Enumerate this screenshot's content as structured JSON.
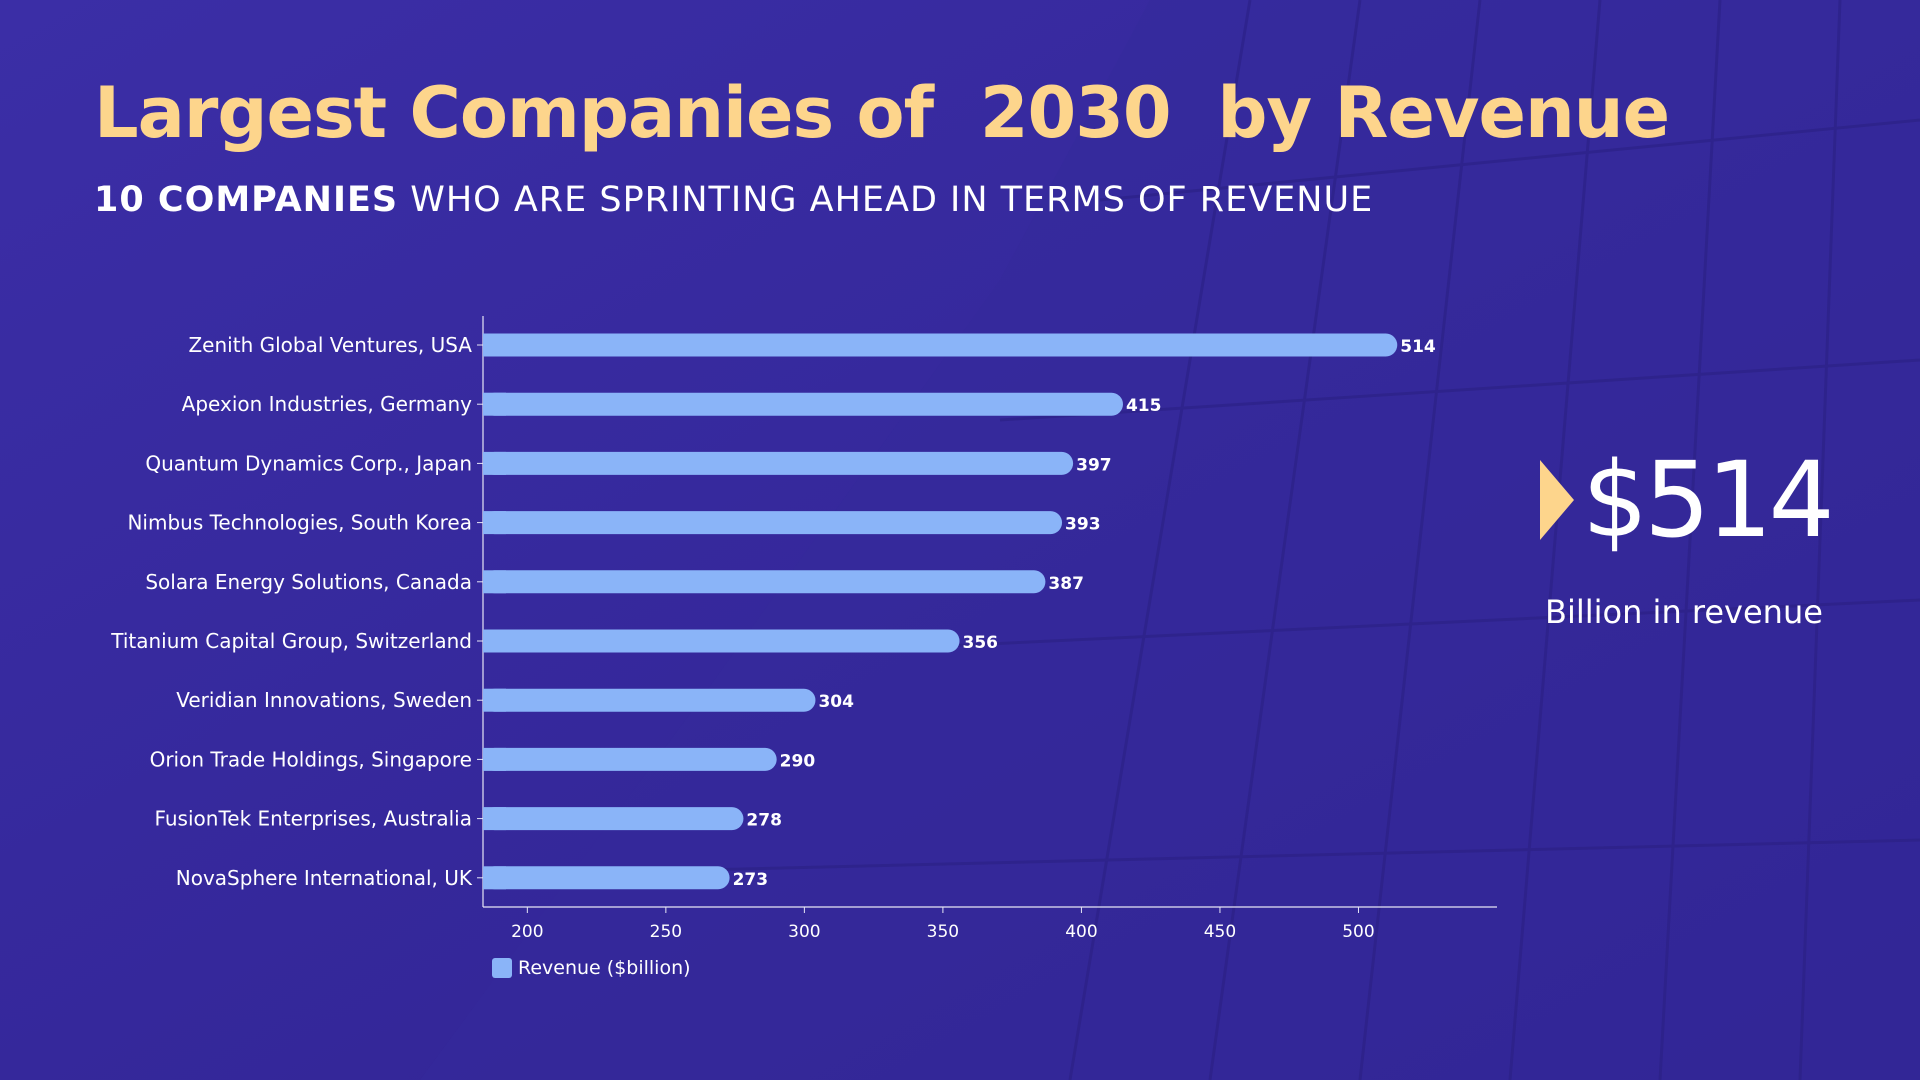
{
  "header": {
    "title": "Largest Companies of  2030  by Revenue",
    "subtitle_bold": "10 COMPANIES",
    "subtitle_rest": " WHO ARE SPRINTING AHEAD IN TERMS OF REVENUE"
  },
  "kpi": {
    "value": "$514",
    "caption": "Billion in revenue"
  },
  "colors": {
    "background": "#3a2a9c",
    "bar": "#8ab4f8",
    "accent": "#fdd58c",
    "text": "#ffffff"
  },
  "chart_data": {
    "type": "bar",
    "orientation": "horizontal",
    "categories": [
      "Zenith Global Ventures, USA",
      "Apexion Industries, Germany",
      "Quantum Dynamics Corp., Japan",
      "Nimbus Technologies, South Korea",
      "Solara Energy Solutions, Canada",
      "Titanium Capital Group, Switzerland",
      "Veridian Innovations, Sweden",
      "Orion Trade Holdings, Singapore",
      "FusionTek Enterprises, Australia",
      "NovaSphere International, UK"
    ],
    "series": [
      {
        "name": "Revenue ($billion)",
        "values": [
          514,
          415,
          397,
          393,
          387,
          356,
          304,
          290,
          278,
          273
        ]
      }
    ],
    "x_ticks": [
      200,
      250,
      300,
      350,
      400,
      450,
      500
    ],
    "xlim": [
      184,
      550
    ],
    "data_labels": true,
    "legend_position": "bottom-left",
    "grid": false
  }
}
